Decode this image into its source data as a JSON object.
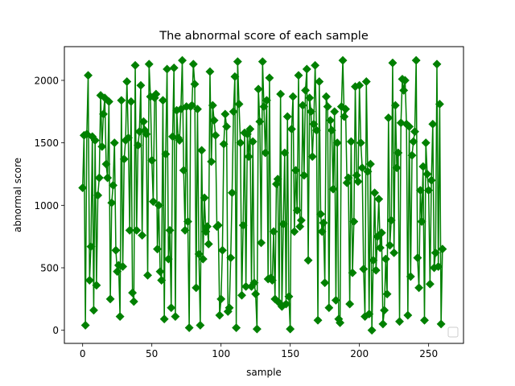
{
  "chart_data": {
    "type": "line",
    "title": "The abnormal score of each sample",
    "xlabel": "sample",
    "ylabel": "abnormal score",
    "xlim": [
      -13.2,
      275.2
    ],
    "ylim": [
      -105,
      2270
    ],
    "xticks": [
      0,
      50,
      100,
      150,
      200,
      250
    ],
    "yticks": [
      0,
      500,
      1000,
      1500,
      2000
    ],
    "grid": false,
    "legend": "lower right (empty)",
    "series_color": "#008000",
    "marker": "diamond",
    "series": [
      {
        "values": [
          1140,
          1560,
          40,
          1570,
          2040,
          400,
          670,
          1550,
          160,
          1520,
          360,
          1080,
          1220,
          1880,
          1470,
          1730,
          1860,
          1330,
          1220,
          1830,
          250,
          1020,
          1160,
          1500,
          640,
          470,
          520,
          110,
          1840,
          510,
          1370,
          1520,
          1990,
          1540,
          800,
          1830,
          300,
          230,
          2120,
          800,
          1480,
          1590,
          1960,
          760,
          1670,
          1600,
          1570,
          440,
          2130,
          1870,
          1360,
          1030,
          1860,
          1890,
          650,
          1000,
          470,
          400,
          1840,
          90,
          1410,
          2090,
          570,
          800,
          180,
          1550,
          2100,
          110,
          1760,
          1540,
          1520,
          1770,
          2160,
          1280,
          800,
          1790,
          870,
          20,
          1790,
          1800,
          2130,
          1970,
          340,
          1770,
          610,
          40,
          1440,
          570,
          1060,
          790,
          830,
          690,
          2070,
          1350,
          1800,
          1680,
          1560,
          830,
          840,
          120,
          250,
          640,
          1490,
          1730,
          1630,
          150,
          180,
          580,
          1100,
          1750,
          2030,
          20,
          2150,
          1810,
          1500,
          280,
          840,
          1580,
          350,
          1570,
          1390,
          1610,
          350,
          1510,
          380,
          290,
          10,
          1930,
          1670,
          700,
          2150,
          1790,
          1420,
          1840,
          410,
          2020,
          420,
          400,
          790,
          250,
          1170,
          1210,
          220,
          1890,
          190,
          850,
          1420,
          210,
          1710,
          270,
          10,
          1610,
          1870,
          790,
          1280,
          960,
          2040,
          830,
          880,
          1800,
          1240,
          1920,
          2090,
          560,
          1860,
          1750,
          1390,
          1650,
          2120,
          1600,
          80,
          1990,
          930,
          790,
          860,
          380,
          1870,
          1790,
          180,
          1680,
          1600,
          1130,
          1750,
          240,
          1500,
          90,
          60,
          1790,
          2160,
          1710,
          1770,
          1180,
          1220,
          210,
          1510,
          460,
          870,
          1950,
          1240,
          1190,
          1960,
          1500,
          1300,
          490,
          110,
          1990,
          1270,
          130,
          1330,
          0,
          560,
          1100,
          480,
          750,
          1050,
          660,
          780,
          50,
          160,
          570,
          290,
          1700,
          680,
          880,
          2140,
          620,
          1800,
          1300,
          1420,
          70,
          1660,
          2010,
          1920,
          2000,
          1650,
          120,
          1630,
          430,
          1400,
          1510,
          1590,
          2160,
          580,
          340,
          1120,
          870,
          1310,
          80,
          1500,
          1250,
          1120,
          370,
          1200,
          1650,
          500,
          620,
          2130,
          510,
          1810,
          50,
          650
        ]
      }
    ]
  }
}
